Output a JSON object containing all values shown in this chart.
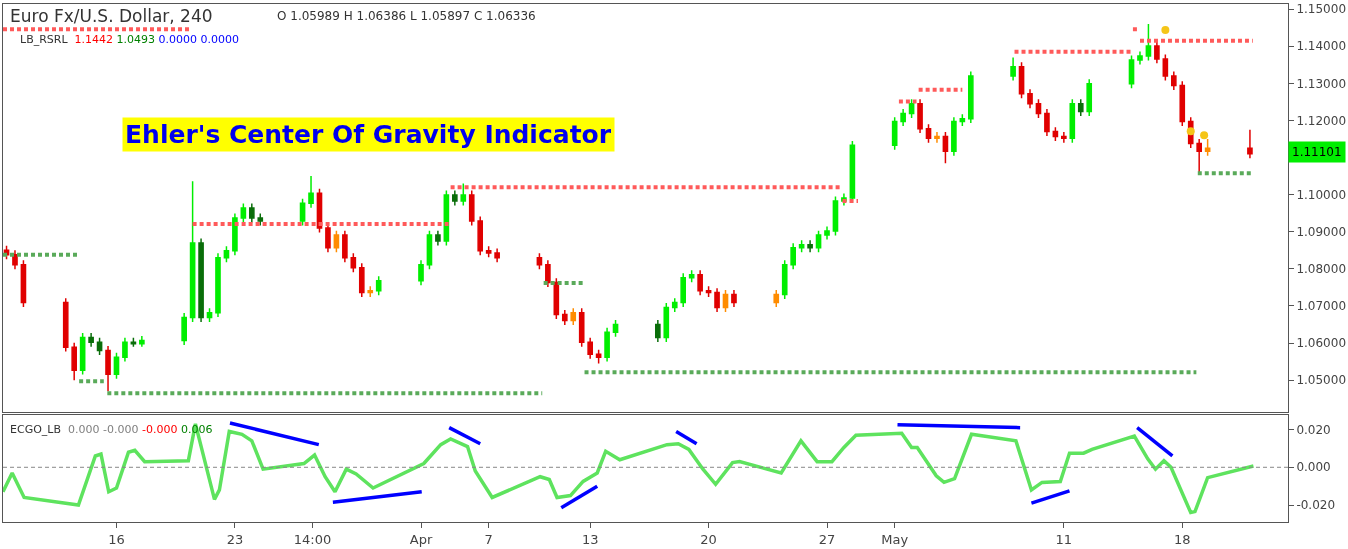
{
  "chart_data": [
    {
      "type": "candlestick",
      "title": "Ehler's Center Of Gravity Indicator",
      "annotations": [
        "Euro Fx/U.S. Dollar, 240",
        "O 1.05989 H 1.06386 L 1.05897 C 1.06336",
        "LB_RSRL 1.1442 1.0493 0.0000 0.0000",
        "1.11101"
      ],
      "x": [
        "--03-09T12:00",
        "--03-10T00:00",
        "--03-10T12:00",
        "--03-13T00:00",
        "--03-13T12:00",
        "--03-14T00:00",
        "--03-14T12:00",
        "--03-15T00:00",
        "--03-15T12:00",
        "--03-16T00:00",
        "--03-16T12:00",
        "--03-17T00:00",
        "--03-17T12:00",
        "--03-20T00:00",
        "--03-20T12:00",
        "--03-21T00:00",
        "--03-21T12:00",
        "--03-22T00:00",
        "--03-22T12:00",
        "--03-23T00:00",
        "--03-23T12:00",
        "--03-24T00:00",
        "--03-24T12:00",
        "--03-27T00:00",
        "--03-27T12:00",
        "--03-28T00:00",
        "--03-28T12:00",
        "--03-29T00:00",
        "--03-29T12:00",
        "--03-30T00:00",
        "--03-30T12:00",
        "--03-31T00:00",
        "--03-31T12:00",
        "--04-03T00:00",
        "--04-03T12:00",
        "--04-04T00:00",
        "--04-04T12:00",
        "--04-05T00:00",
        "--04-05T12:00",
        "--04-06T00:00",
        "--04-06T12:00",
        "--04-07T00:00",
        "--04-07T12:00",
        "--04-10T00:00",
        "--04-10T12:00",
        "--04-11T00:00",
        "--04-11T12:00",
        "--04-12T00:00",
        "--04-12T12:00",
        "--04-13T00:00",
        "--04-13T12:00",
        "--04-14T00:00",
        "--04-14T12:00",
        "--04-17T00:00",
        "--04-17T12:00",
        "--04-18T00:00",
        "--04-18T12:00",
        "--04-19T00:00",
        "--04-19T12:00",
        "--04-20T00:00",
        "--04-20T12:00",
        "--04-21T00:00",
        "--04-21T12:00",
        "--04-24T00:00",
        "--04-24T12:00",
        "--04-25T00:00",
        "--04-25T12:00",
        "--04-26T00:00",
        "--04-26T12:00",
        "--04-27T00:00",
        "--04-27T12:00",
        "--04-28T00:00",
        "--04-28T12:00",
        "--05-01T00:00",
        "--05-01T12:00",
        "--05-02T00:00",
        "--05-02T12:00",
        "--05-03T00:00",
        "--05-03T12:00",
        "--05-04T00:00",
        "--05-04T12:00",
        "--05-05T00:00",
        "--05-05T12:00",
        "--05-08T00:00",
        "--05-08T12:00",
        "--05-09T00:00",
        "--05-09T12:00",
        "--05-10T00:00",
        "--05-10T12:00",
        "--05-11T00:00",
        "--05-11T12:00",
        "--05-12T00:00",
        "--05-12T12:00",
        "--05-15T00:00",
        "--05-15T12:00",
        "--05-16T00:00",
        "--05-16T12:00",
        "--05-17T00:00",
        "--05-17T12:00",
        "--05-18T00:00",
        "--05-18T12:00",
        "--05-19T00:00",
        "--05-19T12:00",
        "--05-22T00:00"
      ],
      "ohlc": [
        [
          1.085,
          1.0862,
          1.0826,
          1.0838
        ],
        [
          1.0838,
          1.085,
          1.0799,
          1.0811
        ],
        [
          1.0811,
          1.0823,
          1.0697,
          1.0709
        ],
        [
          1.0709,
          1.0721,
          1.0577,
          1.0589
        ],
        [
          1.0589,
          1.0601,
          1.05,
          1.0527
        ],
        [
          1.0527,
          1.0627,
          1.0515,
          1.0615
        ],
        [
          1.0615,
          1.0627,
          1.059,
          1.0602
        ],
        [
          1.0602,
          1.0614,
          1.0568,
          1.058
        ],
        [
          1.058,
          1.0592,
          1.047,
          1.0516
        ],
        [
          1.0516,
          1.0574,
          1.0504,
          1.0562
        ],
        [
          1.0562,
          1.0614,
          1.055,
          1.0602
        ],
        [
          1.0602,
          1.0614,
          1.059,
          1.0598
        ],
        [
          1.0598,
          1.0619,
          1.059,
          1.0607
        ],
        [
          1.0607,
          1.0681,
          1.0595,
          1.0669
        ],
        [
          1.0669,
          1.1036,
          1.0657,
          1.087
        ],
        [
          1.087,
          1.0882,
          1.0657,
          1.0669
        ],
        [
          1.0669,
          1.0694,
          1.0657,
          1.0682
        ],
        [
          1.0682,
          1.0842,
          1.067,
          1.083
        ],
        [
          1.083,
          1.0861,
          1.0818,
          1.0849
        ],
        [
          1.0849,
          1.0949,
          1.0837,
          1.0937
        ],
        [
          1.0937,
          1.0976,
          1.0925,
          1.0964
        ],
        [
          1.0964,
          1.0976,
          1.0925,
          1.0937
        ],
        [
          1.0937,
          1.0949,
          1.0917,
          1.0929
        ],
        [
          1.0929,
          1.0989,
          1.0917,
          1.0977
        ],
        [
          1.0977,
          1.105,
          1.0965,
          1.1004
        ],
        [
          1.1004,
          1.1016,
          1.0898,
          1.091
        ],
        [
          1.091,
          1.0922,
          1.0845,
          1.0857
        ],
        [
          1.0857,
          1.0903,
          1.0845,
          1.0891
        ],
        [
          1.0891,
          1.0903,
          1.0818,
          1.083
        ],
        [
          1.083,
          1.0842,
          1.0791,
          1.0803
        ],
        [
          1.0803,
          1.0815,
          1.0724,
          1.0736
        ],
        [
          1.0736,
          1.0753,
          1.0724,
          1.0741
        ],
        [
          1.0741,
          1.078,
          1.0729,
          1.0768
        ],
        [
          1.0768,
          1.0823,
          1.0756,
          1.0811
        ],
        [
          1.0811,
          1.0903,
          1.0799,
          1.0891
        ],
        [
          1.0891,
          1.0903,
          1.0863,
          1.0875
        ],
        [
          1.0875,
          1.1011,
          1.0863,
          1.0999
        ],
        [
          1.0999,
          1.1011,
          1.0971,
          1.0983
        ],
        [
          1.0983,
          1.103,
          1.0971,
          1.0999
        ],
        [
          1.0999,
          1.1011,
          1.0917,
          1.0929
        ],
        [
          1.0929,
          1.0941,
          1.0837,
          1.0849
        ],
        [
          1.0849,
          1.0861,
          1.0831,
          1.0843
        ],
        [
          1.0843,
          1.0855,
          1.0818,
          1.083
        ],
        [
          1.083,
          1.0842,
          1.0799,
          1.0811
        ],
        [
          1.0811,
          1.0823,
          1.0751,
          1.0763
        ],
        [
          1.0763,
          1.0775,
          1.0665,
          1.0677
        ],
        [
          1.0677,
          1.0689,
          1.0649,
          1.0661
        ],
        [
          1.0661,
          1.0694,
          1.0649,
          1.0682
        ],
        [
          1.0682,
          1.0694,
          1.059,
          1.0602
        ],
        [
          1.0602,
          1.0614,
          1.0558,
          1.057
        ],
        [
          1.057,
          1.0582,
          1.0545,
          1.0562
        ],
        [
          1.0562,
          1.0641,
          1.055,
          1.0629
        ],
        [
          1.0629,
          1.0662,
          1.0617,
          1.065
        ],
        [
          1.065,
          1.0662,
          1.0603,
          1.0615
        ],
        [
          1.0615,
          1.0708,
          1.0603,
          1.0696
        ],
        [
          1.0696,
          1.0721,
          1.0684,
          1.0709
        ],
        [
          1.0709,
          1.0788,
          1.0697,
          1.0776
        ],
        [
          1.0776,
          1.0796,
          1.0764,
          1.0784
        ],
        [
          1.0784,
          1.0796,
          1.0729,
          1.0741
        ],
        [
          1.0741,
          1.0753,
          1.0724,
          1.0736
        ],
        [
          1.0736,
          1.0748,
          1.0684,
          1.0696
        ],
        [
          1.0696,
          1.0743,
          1.0684,
          1.0731
        ],
        [
          1.0731,
          1.0743,
          1.0697,
          1.0709
        ],
        [
          1.0709,
          1.0743,
          1.0697,
          1.0731
        ],
        [
          1.0731,
          1.0823,
          1.0719,
          1.0811
        ],
        [
          1.0811,
          1.0869,
          1.0799,
          1.0857
        ],
        [
          1.0857,
          1.0877,
          1.0845,
          1.0865
        ],
        [
          1.0865,
          1.0877,
          1.0845,
          1.0857
        ],
        [
          1.0857,
          1.0903,
          1.0845,
          1.0891
        ],
        [
          1.0891,
          1.0914,
          1.0879,
          1.0902
        ],
        [
          1.0902,
          1.0995,
          1.089,
          1.0983
        ],
        [
          1.0983,
          1.1003,
          1.0971,
          1.0991
        ],
        [
          1.0991,
          1.1145,
          1.0979,
          1.1133
        ],
        [
          1.1133,
          1.1209,
          1.1121,
          1.1197
        ],
        [
          1.1197,
          1.1231,
          1.1185,
          1.1219
        ],
        [
          1.1219,
          1.1257,
          1.1207,
          1.1245
        ],
        [
          1.1245,
          1.1257,
          1.1166,
          1.1178
        ],
        [
          1.1178,
          1.119,
          1.114,
          1.1152
        ],
        [
          1.1152,
          1.1169,
          1.114,
          1.1157
        ],
        [
          1.1157,
          1.1169,
          1.1085,
          1.1117
        ],
        [
          1.1117,
          1.1209,
          1.1105,
          1.1197
        ],
        [
          1.1197,
          1.1217,
          1.1185,
          1.1205
        ],
        [
          1.1205,
          1.1332,
          1.1193,
          1.132
        ],
        [
          1.132,
          1.137,
          1.1308,
          1.1345
        ],
        [
          1.1345,
          1.1357,
          1.126,
          1.1272
        ],
        [
          1.1272,
          1.1284,
          1.1233,
          1.1245
        ],
        [
          1.1245,
          1.1257,
          1.1207,
          1.1219
        ],
        [
          1.1219,
          1.1231,
          1.1158,
          1.117
        ],
        [
          1.117,
          1.1182,
          1.1145,
          1.1157
        ],
        [
          1.1157,
          1.1169,
          1.114,
          1.1152
        ],
        [
          1.1152,
          1.1257,
          1.114,
          1.1245
        ],
        [
          1.1245,
          1.1257,
          1.1212,
          1.1224
        ],
        [
          1.1224,
          1.1311,
          1.1212,
          1.1299
        ],
        [
          1.1299,
          1.1375,
          1.1287,
          1.1363
        ],
        [
          1.1363,
          1.1386,
          1.1351,
          1.1374
        ],
        [
          1.1374,
          1.146,
          1.1362,
          1.1401
        ],
        [
          1.1401,
          1.1413,
          1.1354,
          1.1366
        ],
        [
          1.1366,
          1.1378,
          1.1308,
          1.132
        ],
        [
          1.132,
          1.1332,
          1.1282,
          1.1294
        ],
        [
          1.1294,
          1.1306,
          1.1185,
          1.1197
        ],
        [
          1.1197,
          1.1209,
          1.1126,
          1.1138
        ],
        [
          1.1138,
          1.115,
          1.106,
          1.1117
        ],
        [
          1.1117,
          1.115,
          1.1105,
          1.1125
        ],
        [
          1.1125,
          1.1175,
          1.1098,
          1.111
        ]
      ],
      "colors": [
        "#e00000",
        "#e00000",
        "#e00000",
        "#e00000",
        "#e00000",
        "#00ee00",
        "#0a6e0a",
        "#0a6e0a",
        "#e00000",
        "#00ee00",
        "#00ee00",
        "#0a6e0a",
        "#00ee00",
        "#00ee00",
        "#00ee00",
        "#0a6e0a",
        "#00ee00",
        "#00ee00",
        "#00ee00",
        "#00ee00",
        "#00ee00",
        "#0a6e0a",
        "#0a6e0a",
        "#00ee00",
        "#00ee00",
        "#e00000",
        "#e00000",
        "#ff8c00",
        "#e00000",
        "#e00000",
        "#e00000",
        "#ff8c00",
        "#00ee00",
        "#00ee00",
        "#00ee00",
        "#0a6e0a",
        "#00ee00",
        "#0a6e0a",
        "#00ee00",
        "#e00000",
        "#e00000",
        "#e00000",
        "#e00000",
        "#e00000",
        "#e00000",
        "#e00000",
        "#e00000",
        "#ff8c00",
        "#e00000",
        "#e00000",
        "#e00000",
        "#00ee00",
        "#00ee00",
        "#0a6e0a",
        "#00ee00",
        "#00ee00",
        "#00ee00",
        "#00ee00",
        "#e00000",
        "#e00000",
        "#e00000",
        "#ff8c00",
        "#e00000",
        "#ff8c00",
        "#00ee00",
        "#00ee00",
        "#00ee00",
        "#0a6e0a",
        "#00ee00",
        "#00ee00",
        "#00ee00",
        "#00ee00",
        "#00ee00",
        "#00ee00",
        "#00ee00",
        "#00ee00",
        "#e00000",
        "#e00000",
        "#ff8c00",
        "#e00000",
        "#00ee00",
        "#00ee00",
        "#00ee00",
        "#00ee00",
        "#e00000",
        "#e00000",
        "#e00000",
        "#e00000",
        "#e00000",
        "#e00000",
        "#00ee00",
        "#0a6e0a",
        "#00ee00",
        "#00ee00",
        "#00ee00",
        "#00ee00",
        "#e00000",
        "#e00000",
        "#e00000",
        "#e00000",
        "#e00000",
        "#e00000",
        "#ff8c00",
        "#e00000"
      ],
      "series": [
        {
          "type": "line",
          "line_style": "dotted",
          "color": "#ff5a5a",
          "x": [
            "--03-09T07:00",
            "--03-20T11:00"
          ],
          "values": [
            1.1446,
            1.1446
          ]
        },
        {
          "type": "line",
          "line_style": "dotted",
          "color": "#ff5a5a",
          "x": [
            "--03-20T12:00",
            "--04-04T16:00"
          ],
          "values": [
            1.0921,
            1.0921
          ]
        },
        {
          "type": "line",
          "line_style": "dotted",
          "color": "#ff5a5a",
          "x": [
            "--04-04T18:00",
            "--04-27T20:00"
          ],
          "values": [
            1.102,
            1.102
          ]
        },
        {
          "type": "line",
          "line_style": "dotted",
          "color": "#ff5a5a",
          "x": [
            "--04-27T22:00",
            "--04-28T20:00"
          ],
          "values": [
            1.0983,
            1.0983
          ]
        },
        {
          "type": "line",
          "line_style": "dotted",
          "color": "#ff5a5a",
          "x": [
            "--05-01T06:00",
            "--05-02T07:00"
          ],
          "values": [
            1.1251,
            1.1251
          ]
        },
        {
          "type": "line",
          "line_style": "dotted",
          "color": "#ff5a5a",
          "x": [
            "--05-02T10:00",
            "--05-05T00:00"
          ],
          "values": [
            1.1283,
            1.1283
          ]
        },
        {
          "type": "line",
          "line_style": "dotted",
          "color": "#ff5a5a",
          "x": [
            "--05-08T02:00",
            "--05-15T01:00"
          ],
          "values": [
            1.1385,
            1.1385
          ]
        },
        {
          "type": "line",
          "line_style": "dotted",
          "color": "#ff5a5a",
          "x": [
            "--05-15T02:00",
            "--05-15T10:00"
          ],
          "values": [
            1.1446,
            1.1446
          ]
        },
        {
          "type": "line",
          "line_style": "dotted",
          "color": "#ff5a5a",
          "x": [
            "--05-15T12:00",
            "--05-22T04:00"
          ],
          "values": [
            1.1415,
            1.1415
          ]
        },
        {
          "type": "line",
          "line_style": "dotted",
          "color": "#5aaa5a",
          "x": [
            "--03-09T07:00",
            "--03-13T17:00"
          ],
          "values": [
            1.0838,
            1.0838
          ]
        },
        {
          "type": "line",
          "line_style": "dotted",
          "color": "#5aaa5a",
          "x": [
            "--03-13T19:00",
            "--03-15T06:00"
          ],
          "values": [
            1.0497,
            1.0497
          ]
        },
        {
          "type": "line",
          "line_style": "dotted",
          "color": "#5aaa5a",
          "x": [
            "--03-15T11:00",
            "--04-10T04:00"
          ],
          "values": [
            1.0465,
            1.0465
          ]
        },
        {
          "type": "line",
          "line_style": "dotted",
          "color": "#5aaa5a",
          "x": [
            "--04-10T06:00",
            "--04-12T14:00"
          ],
          "values": [
            1.0762,
            1.0762
          ]
        },
        {
          "type": "line",
          "line_style": "dotted",
          "color": "#5aaa5a",
          "x": [
            "--04-12T16:00",
            "--05-18T20:00"
          ],
          "values": [
            1.0521,
            1.0521
          ]
        },
        {
          "type": "line",
          "line_style": "dotted",
          "color": "#5aaa5a",
          "x": [
            "--05-18T22:00",
            "--05-22T04:00"
          ],
          "values": [
            1.1058,
            1.1058
          ]
        },
        {
          "type": "scatter",
          "marker": "circle",
          "color": "#f5c518",
          "x": [
            "--05-17T00:00",
            "--05-18T12:00",
            "--05-19T07:00"
          ],
          "values": [
            1.1444,
            1.1171,
            1.116
          ]
        }
      ],
      "xlim": [
        "--03-09T07:00",
        "--05-24T06:00"
      ],
      "ylim": [
        1.0413,
        1.1514
      ],
      "xticks": [
        {
          "value": "--03-16",
          "label": "16"
        },
        {
          "value": "--03-23",
          "label": "23"
        },
        {
          "value": "--03-27T14:00",
          "label": "14:00"
        },
        {
          "value": "--04-03",
          "label": "Apr"
        },
        {
          "value": "--04-07",
          "label": "7"
        },
        {
          "value": "--04-13",
          "label": "13"
        },
        {
          "value": "--04-20",
          "label": "20"
        },
        {
          "value": "--04-27",
          "label": "27"
        },
        {
          "value": "--05-01",
          "label": "May"
        },
        {
          "value": "--05-11",
          "label": "11"
        },
        {
          "value": "--05-18",
          "label": "18"
        }
      ],
      "yticks": [
        {
          "value": 1.05,
          "label": "1.05000"
        },
        {
          "value": 1.06,
          "label": "1.06000"
        },
        {
          "value": 1.07,
          "label": "1.07000"
        },
        {
          "value": 1.08,
          "label": "1.08000"
        },
        {
          "value": 1.09,
          "label": "1.09000"
        },
        {
          "value": 1.1,
          "label": "1.10000"
        },
        {
          "value": 1.11,
          "label": null
        },
        {
          "value": 1.12,
          "label": "1.12000"
        },
        {
          "value": 1.13,
          "label": "1.13000"
        },
        {
          "value": 1.14,
          "label": "1.14000"
        },
        {
          "value": 1.15,
          "label": "1.15000"
        }
      ],
      "tick_labels": "y"
    },
    {
      "type": "line",
      "annotations": [
        "ECGO_LB 0.000 -0.000 -0.000 0.006"
      ],
      "series": [
        {
          "color": "#5ee35e",
          "x": [
            "--03-09T07:00",
            "--03-09T20:00",
            "--03-10T13:00",
            "--03-13T18:00",
            "--03-14T18:00",
            "--03-15T02:00",
            "--03-15T13:00",
            "--03-16T00:00",
            "--03-16T17:00",
            "--03-17T02:00",
            "--03-17T16:00",
            "--03-20T06:00",
            "--03-20T16:00",
            "--03-21T19:00",
            "--03-22T02:00",
            "--03-22T16:00",
            "--03-23T10:00",
            "--03-24T00:00",
            "--03-24T16:00",
            "--03-27T02:00",
            "--03-27T17:00",
            "--03-28T08:00",
            "--03-28T22:00",
            "--03-29T14:00",
            "--03-30T04:00",
            "--03-31T04:00",
            "--04-03T04:00",
            "--04-04T04:00",
            "--04-04T18:00",
            "--04-05T18:00",
            "--04-06T05:00",
            "--04-07T05:00",
            "--04-10T01:00",
            "--04-10T14:00",
            "--04-11T01:00",
            "--04-11T20:00",
            "--04-12T14:00",
            "--04-13T10:00",
            "--04-13T22:00",
            "--04-14T18:00",
            "--04-17T13:00",
            "--04-18T05:00",
            "--04-18T20:00",
            "--04-19T16:00",
            "--04-20T10:00",
            "--04-21T10:00",
            "--04-21T20:00",
            "--04-24T07:00",
            "--04-25T11:00",
            "--04-26T10:00",
            "--04-27T07:00",
            "--04-28T00:00",
            "--04-28T17:00",
            "--05-01T10:00",
            "--05-02T00:00",
            "--05-02T08:00",
            "--05-03T11:00",
            "--05-03T22:00",
            "--05-04T13:00",
            "--05-05T13:00",
            "--05-08T04:00",
            "--05-09T02:00",
            "--05-09T17:00",
            "--05-10T19:00",
            "--05-11T08:00",
            "--05-12T04:00",
            "--05-12T16:00",
            "--05-15T04:00",
            "--05-15T23:00",
            "--05-16T10:00",
            "--05-16T22:00",
            "--05-17T08:00",
            "--05-18T12:00",
            "--05-18T18:00",
            "--05-19T12:00",
            "--05-22T05:00"
          ],
          "values": [
            -0.013,
            -0.003,
            -0.016,
            -0.02,
            0.006,
            0.007,
            -0.013,
            -0.011,
            0.008,
            0.009,
            0.003,
            0.0035,
            0.023,
            -0.017,
            -0.012,
            0.019,
            0.0175,
            0.014,
            -0.001,
            0.002,
            0.0065,
            -0.005,
            -0.013,
            -0.001,
            -0.0035,
            -0.011,
            0.002,
            0.012,
            0.015,
            0.011,
            -0.002,
            -0.016,
            -0.005,
            -0.0065,
            -0.016,
            -0.015,
            -0.0075,
            -0.003,
            0.0085,
            0.004,
            0.012,
            0.0125,
            0.0095,
            -0.001,
            -0.009,
            0.0025,
            0.003,
            -0.003,
            0.014,
            0.003,
            0.003,
            0.0105,
            0.017,
            0.018,
            0.0105,
            0.0105,
            -0.0045,
            -0.008,
            -0.006,
            0.0175,
            0.014,
            -0.012,
            -0.008,
            -0.0075,
            0.0075,
            0.0075,
            0.0095,
            0.0165,
            0.0045,
            -0.001,
            0.0035,
            0.0,
            -0.024,
            -0.0235,
            -0.0055,
            0.0007
          ]
        },
        {
          "color": "#0000ff",
          "x": [
            "--03-22T17:00",
            "--03-27T23:00"
          ],
          "values": [
            0.0235,
            0.012
          ]
        },
        {
          "color": "#0000ff",
          "x": [
            "--03-28T19:00",
            "--04-03T01:00"
          ],
          "values": [
            -0.0185,
            -0.013
          ]
        },
        {
          "color": "#0000ff",
          "x": [
            "--04-04T16:00",
            "--04-06T12:00"
          ],
          "values": [
            0.021,
            0.0125
          ]
        },
        {
          "color": "#0000ff",
          "x": [
            "--04-11T07:00",
            "--04-13T10:00"
          ],
          "values": [
            -0.0215,
            -0.01
          ]
        },
        {
          "color": "#0000ff",
          "x": [
            "--04-18T02:00",
            "--04-19T07:00"
          ],
          "values": [
            0.019,
            0.0125
          ]
        },
        {
          "color": "#0000ff",
          "x": [
            "--05-01T04:00",
            "--05-08T10:00"
          ],
          "values": [
            0.0225,
            0.021
          ]
        },
        {
          "color": "#0000ff",
          "x": [
            "--05-09T02:00",
            "--05-11T08:00"
          ],
          "values": [
            -0.019,
            -0.0125
          ]
        },
        {
          "color": "#0000ff",
          "x": [
            "--05-15T08:00",
            "--05-17T10:00"
          ],
          "values": [
            0.021,
            0.006
          ]
        }
      ],
      "ref_lines": [
        {
          "axis": "y",
          "value": 0,
          "color": "#888888",
          "line_style": "dotted"
        }
      ],
      "xlim": [
        "--03-09T07:00",
        "--05-24T06:00"
      ],
      "ylim": [
        -0.029,
        0.0275
      ],
      "xticks": [
        {
          "value": "--03-16",
          "label": "16"
        },
        {
          "value": "--03-23",
          "label": "23"
        },
        {
          "value": "--03-27T14:00",
          "label": "14:00"
        },
        {
          "value": "--04-03",
          "label": "Apr"
        },
        {
          "value": "--04-07",
          "label": "7"
        },
        {
          "value": "--04-13",
          "label": "13"
        },
        {
          "value": "--04-20",
          "label": "20"
        },
        {
          "value": "--04-27",
          "label": "27"
        },
        {
          "value": "--05-01",
          "label": "May"
        },
        {
          "value": "--05-11",
          "label": "11"
        },
        {
          "value": "--05-18",
          "label": "18"
        }
      ],
      "yticks": [
        {
          "value": 0.02,
          "label": "0.020"
        },
        {
          "value": 0,
          "label": "0.000"
        },
        {
          "value": -0.02,
          "label": "-0.020"
        }
      ]
    }
  ]
}
